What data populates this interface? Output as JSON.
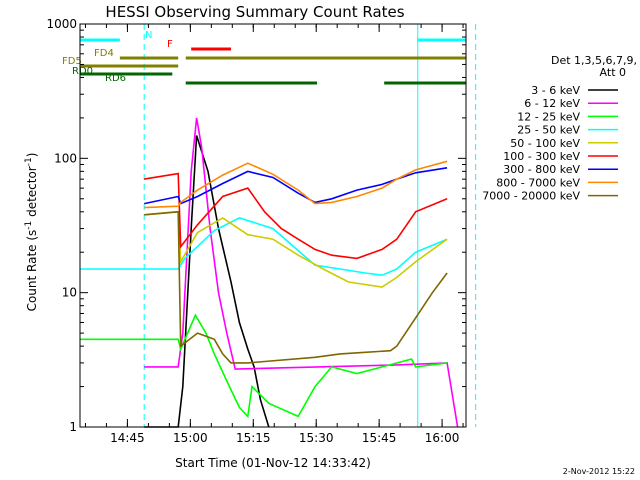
{
  "chart_data": {
    "type": "line",
    "title": "HESSI Observing Summary Count Rates",
    "xlabel": "Start Time (01-Nov-12 14:33:42)",
    "ylabel": "Count Rate (s",
    "ylabel_sup1": "-1",
    "ylabel_mid": " detector",
    "ylabel_sup2": "-1",
    "ylabel_end": ")",
    "yscale": "log",
    "xlim_min": [
      0,
      92
    ],
    "ylim": [
      1,
      1000
    ],
    "xticks": [
      {
        "label": "14:45",
        "value": 11.3
      },
      {
        "label": "15:00",
        "value": 26.3
      },
      {
        "label": "15:15",
        "value": 41.3
      },
      {
        "label": "15:30",
        "value": 56.3
      },
      {
        "label": "15:45",
        "value": 71.3
      },
      {
        "label": "16:00",
        "value": 86.3
      }
    ],
    "yticks": [
      {
        "label": "1",
        "value": 1
      },
      {
        "label": "10",
        "value": 10
      },
      {
        "label": "100",
        "value": 100
      },
      {
        "label": "1000",
        "value": 1000
      }
    ],
    "legend_header": [
      "Det 1,3,5,6,7,9,",
      "Att 0"
    ],
    "series": [
      {
        "name": "3 - 6 keV",
        "color": "#000000",
        "points": [
          [
            15.3,
            0
          ],
          [
            23.4,
            0
          ],
          [
            24.5,
            2
          ],
          [
            26.5,
            30
          ],
          [
            27.8,
            148
          ],
          [
            30.5,
            80
          ],
          [
            33,
            30
          ],
          [
            36,
            12
          ],
          [
            38,
            6
          ],
          [
            40,
            3.8
          ],
          [
            41.5,
            2.8
          ],
          [
            43,
            1.6
          ],
          [
            45,
            0
          ]
        ]
      },
      {
        "name": "6 - 12 keV",
        "color": "#ff00ff",
        "points": [
          [
            15.3,
            2.8
          ],
          [
            23.4,
            2.8
          ],
          [
            24.5,
            5
          ],
          [
            26.5,
            80
          ],
          [
            27.8,
            200
          ],
          [
            29,
            120
          ],
          [
            31,
            30
          ],
          [
            33,
            10
          ],
          [
            35,
            5
          ],
          [
            37,
            2.7
          ],
          [
            75.5,
            2.9
          ],
          [
            87.5,
            3
          ],
          [
            90,
            1
          ]
        ]
      },
      {
        "name": "12 - 25 keV",
        "color": "#00ff00",
        "points": [
          [
            0,
            4.5
          ],
          [
            23.4,
            4.5
          ],
          [
            24,
            3.8
          ],
          [
            27.5,
            6.8
          ],
          [
            30,
            5
          ],
          [
            32,
            3.5
          ],
          [
            35,
            2.2
          ],
          [
            38,
            1.4
          ],
          [
            40,
            1.2
          ],
          [
            41,
            2
          ],
          [
            45,
            1.5
          ],
          [
            52,
            1.2
          ],
          [
            56,
            2
          ],
          [
            60,
            2.8
          ],
          [
            66,
            2.5
          ],
          [
            72,
            2.8
          ],
          [
            79,
            3.2
          ],
          [
            80,
            2.8
          ],
          [
            87.5,
            3
          ]
        ]
      },
      {
        "name": "25 - 50 keV",
        "color": "#00ffff",
        "points": [
          [
            0,
            15
          ],
          [
            23.4,
            15
          ],
          [
            25,
            18
          ],
          [
            32,
            29
          ],
          [
            38,
            36
          ],
          [
            46,
            30
          ],
          [
            56,
            16
          ],
          [
            62,
            15
          ],
          [
            68,
            14
          ],
          [
            72,
            13.5
          ],
          [
            75.5,
            15
          ],
          [
            80,
            20
          ],
          [
            87.5,
            25
          ]
        ]
      },
      {
        "name": "50 - 100 keV",
        "color": "#cccc00",
        "points": [
          [
            15.3,
            38
          ],
          [
            23.4,
            40
          ],
          [
            24,
            17
          ],
          [
            28,
            28
          ],
          [
            34,
            36
          ],
          [
            40,
            27
          ],
          [
            46,
            25
          ],
          [
            52,
            19
          ],
          [
            58,
            15
          ],
          [
            64,
            12
          ],
          [
            72,
            11
          ],
          [
            75.5,
            13
          ],
          [
            80,
            17
          ],
          [
            87.5,
            25
          ]
        ]
      },
      {
        "name": "100 - 300 keV",
        "color": "#ff0000",
        "points": [
          [
            15.3,
            70
          ],
          [
            23.4,
            77
          ],
          [
            24,
            22
          ],
          [
            28,
            32
          ],
          [
            34,
            52
          ],
          [
            40,
            60
          ],
          [
            44,
            40
          ],
          [
            48,
            30
          ],
          [
            52,
            25
          ],
          [
            56,
            21
          ],
          [
            60,
            19
          ],
          [
            66,
            18
          ],
          [
            72,
            21
          ],
          [
            75.5,
            25
          ],
          [
            80,
            40
          ],
          [
            87.5,
            50
          ]
        ]
      },
      {
        "name": "300 - 800 keV",
        "color": "#0000ff",
        "points": [
          [
            15.3,
            46
          ],
          [
            23.4,
            52
          ],
          [
            24,
            46
          ],
          [
            28,
            52
          ],
          [
            34,
            65
          ],
          [
            40,
            80
          ],
          [
            46,
            72
          ],
          [
            52,
            55
          ],
          [
            56,
            47
          ],
          [
            60,
            50
          ],
          [
            66,
            58
          ],
          [
            72,
            64
          ],
          [
            75.5,
            70
          ],
          [
            80,
            78
          ],
          [
            87.5,
            85
          ]
        ]
      },
      {
        "name": "800 - 7000 keV",
        "color": "#ff8800",
        "points": [
          [
            15.3,
            43
          ],
          [
            23.4,
            44
          ],
          [
            24,
            47
          ],
          [
            28,
            58
          ],
          [
            34,
            75
          ],
          [
            40,
            92
          ],
          [
            46,
            76
          ],
          [
            52,
            58
          ],
          [
            56,
            46
          ],
          [
            60,
            47
          ],
          [
            66,
            52
          ],
          [
            72,
            60
          ],
          [
            75.5,
            70
          ],
          [
            80,
            82
          ],
          [
            87.5,
            95
          ]
        ]
      },
      {
        "name": "7000 - 20000 keV",
        "color": "#806600",
        "points": [
          [
            15.3,
            38
          ],
          [
            23.4,
            40
          ],
          [
            24,
            4
          ],
          [
            28,
            5
          ],
          [
            32,
            4.5
          ],
          [
            34,
            3.5
          ],
          [
            36,
            3
          ],
          [
            40,
            3
          ],
          [
            56,
            3.3
          ],
          [
            62,
            3.5
          ],
          [
            68,
            3.6
          ],
          [
            74,
            3.7
          ],
          [
            75.5,
            4
          ],
          [
            80,
            6.5
          ],
          [
            84,
            10
          ],
          [
            87.5,
            14
          ]
        ]
      }
    ],
    "annotations": [
      {
        "label": "N",
        "color": "#00ffff",
        "bars": [
          [
            0,
            9.5
          ],
          [
            80.5,
            92
          ]
        ]
      },
      {
        "label": "F",
        "color": "#ff0000",
        "bars": [
          [
            26.5,
            36
          ]
        ]
      },
      {
        "label": "FD4",
        "color": "#808000",
        "bars": [
          [
            9.5,
            23.4
          ],
          [
            25.2,
            92
          ]
        ]
      },
      {
        "label": "FD5",
        "color": "#808000",
        "bars": [
          [
            0,
            23.4
          ]
        ]
      },
      {
        "label": "RD0",
        "color": "#006600",
        "bars": [
          [
            0,
            22
          ]
        ]
      },
      {
        "label": "RD6",
        "color": "#006600",
        "bars": [
          [
            25.2,
            56.5
          ],
          [
            72.5,
            92
          ]
        ]
      }
    ],
    "vertical_markers": [
      {
        "x": 0,
        "style": "solid",
        "color": "#00ffff"
      },
      {
        "x": 15.3,
        "style": "dashed",
        "color": "#00ffff"
      },
      {
        "x": 80.5,
        "style": "solid",
        "color": "#00ffff"
      },
      {
        "x": 94.3,
        "style": "dashed",
        "color": "#00ffff"
      }
    ]
  },
  "footer": {
    "date": "2-Nov-2012 15:22"
  }
}
